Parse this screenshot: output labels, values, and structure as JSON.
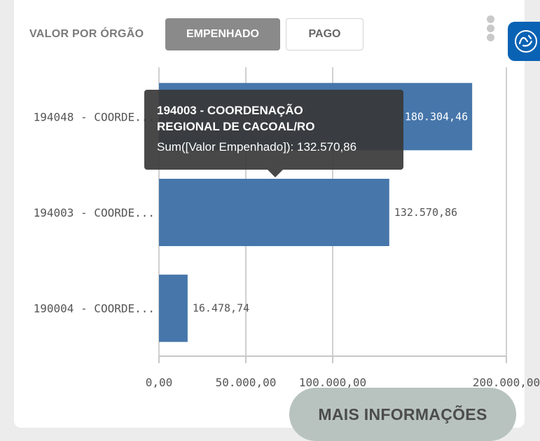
{
  "header": {
    "title": "VALOR POR ÓRGÃO",
    "toggle": [
      "EMPENHADO",
      "PAGO"
    ],
    "active_toggle": "EMPENHADO"
  },
  "tooltip": {
    "title": "194003 - COORDENAÇÃO REGIONAL DE CACOAL/RO",
    "measure_text": "Sum([Valor Empenhado]): 132.570,86"
  },
  "footer": {
    "more_button": "MAIS INFORMAÇÕES"
  },
  "icons": {
    "menu": "vertical-dots-icon",
    "accessibility": "sign-language-hands-icon"
  },
  "colors": {
    "bar": "#4676aa",
    "toggle_active": "#8a8a8a",
    "more_button": "#b8c3c0",
    "accessibility": "#0a62b4"
  },
  "chart_data": {
    "type": "bar",
    "orientation": "horizontal",
    "categories": [
      "194048 - COORDE...",
      "194003 - COORDE...",
      "190004 - COORDE..."
    ],
    "values": [
      180304.46,
      132570.86,
      16478.74
    ],
    "value_labels": [
      "180.304,46",
      "132.570,86",
      "16.478,74"
    ],
    "x_ticks": [
      0,
      50000,
      100000,
      200000
    ],
    "x_tick_labels": [
      "0,00",
      "50.000,00",
      "100.000,00",
      "200.000,00"
    ],
    "xlim": [
      0,
      200000
    ],
    "grid": true
  }
}
